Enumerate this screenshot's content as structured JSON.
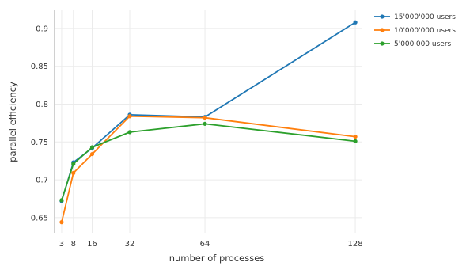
{
  "chart_data": {
    "type": "line",
    "title": "",
    "xlabel": "number of processes",
    "ylabel": "parallel efficiency",
    "x": [
      3,
      8,
      16,
      32,
      64,
      128
    ],
    "xticks": [
      "3",
      "8",
      "16",
      "32",
      "64",
      "128"
    ],
    "yticks": [
      "0.65",
      "0.7",
      "0.75",
      "0.8",
      "0.85",
      "0.9"
    ],
    "xlim": [
      0,
      131
    ],
    "ylim": [
      0.63,
      0.925
    ],
    "grid": true,
    "legend_position": "top-right-outside",
    "series": [
      {
        "name": "15'000'000 users",
        "color": "#1f77b4",
        "values": [
          0.672,
          0.723,
          0.742,
          0.786,
          0.783,
          0.908
        ]
      },
      {
        "name": "10'000'000 users",
        "color": "#ff7f0e",
        "values": [
          0.644,
          0.709,
          0.734,
          0.784,
          0.782,
          0.757
        ]
      },
      {
        "name": "5'000'000 users",
        "color": "#2ca02c",
        "values": [
          0.673,
          0.721,
          0.743,
          0.763,
          0.774,
          0.751
        ]
      }
    ]
  }
}
